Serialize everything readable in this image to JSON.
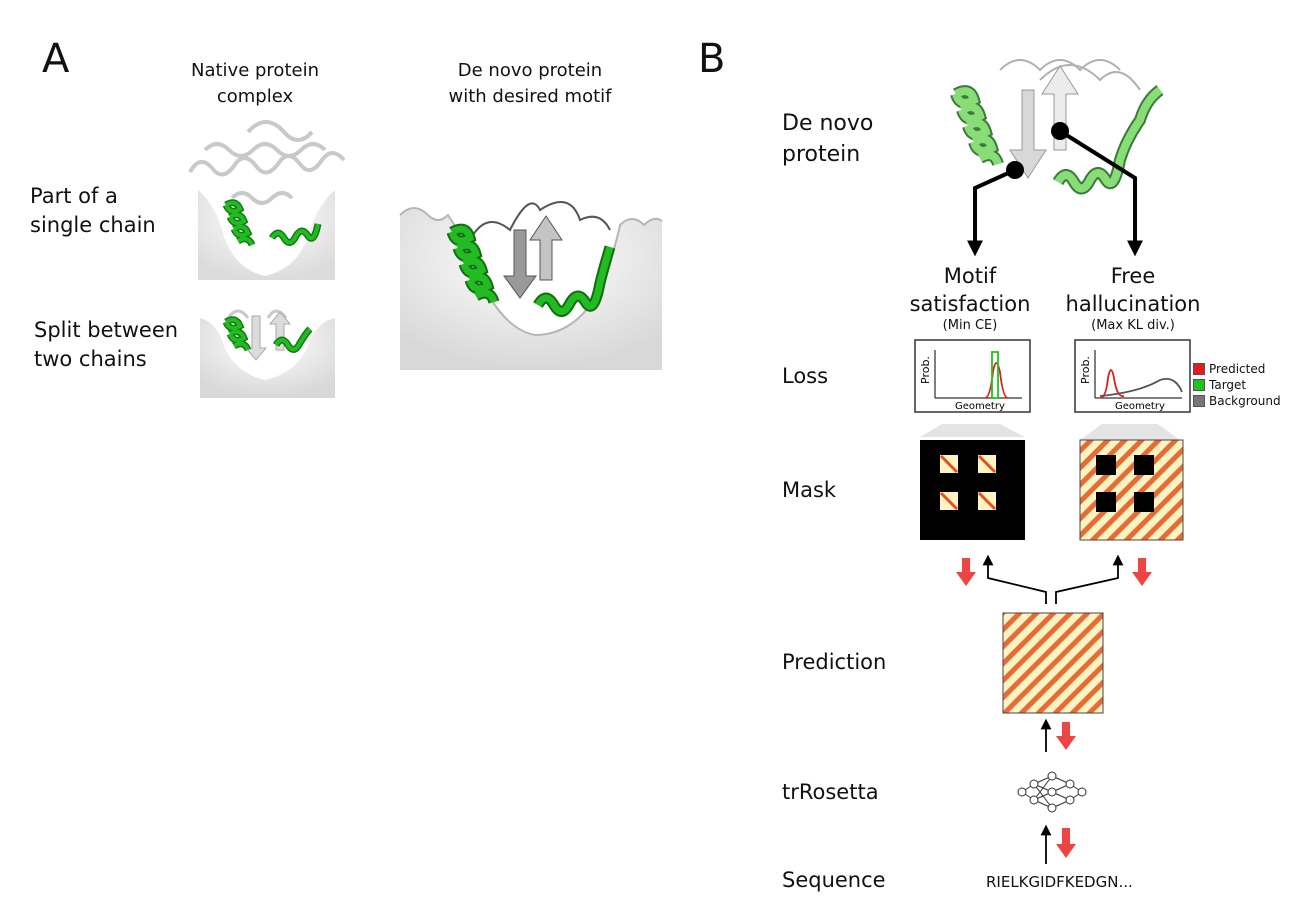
{
  "panel_a": {
    "letter": "A",
    "col_native": "Native protein\ncomplex",
    "col_denovo": "De novo protein\nwith desired motif",
    "row_single": "Part of a\nsingle chain",
    "row_split": "Split between\ntwo chains"
  },
  "panel_b": {
    "letter": "B",
    "denovo_label": "De novo\nprotein",
    "motif_title": "Motif\nsatisfaction",
    "motif_sub": "(Min CE)",
    "free_title": "Free\nhallucination",
    "free_sub": "(Max KL div.)",
    "rows": {
      "loss": "Loss",
      "mask": "Mask",
      "prediction": "Prediction",
      "trrosetta": "trRosetta",
      "sequence": "Sequence"
    },
    "plot_ylabel": "Prob.",
    "plot_xlabel": "Geometry",
    "legend": [
      {
        "label": "Predicted",
        "color": "#e11d1d"
      },
      {
        "label": "Target",
        "color": "#1ec41e"
      },
      {
        "label": "Background",
        "color": "#777777"
      }
    ],
    "sequence_text": "RIELKGIDFKEDGN..."
  },
  "colors": {
    "helix_green": "#22bb22",
    "helix_light": "#88dd77",
    "red_arrow": "#ee4444",
    "map_bg": "#fff3c4",
    "map_red": "#e2541c"
  }
}
